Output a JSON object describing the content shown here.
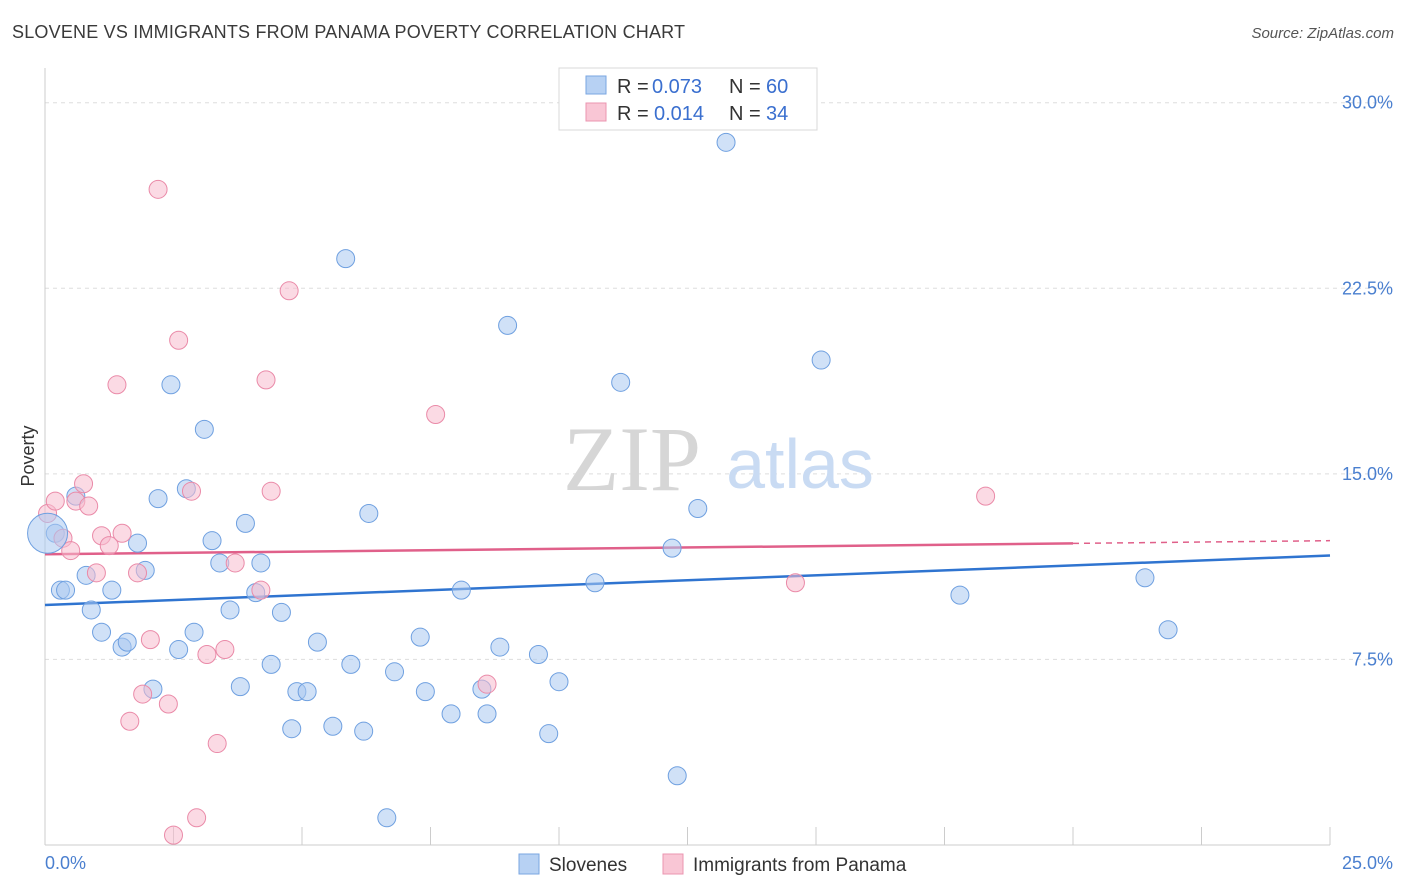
{
  "title": "SLOVENE VS IMMIGRANTS FROM PANAMA POVERTY CORRELATION CHART",
  "source": "Source: ZipAtlas.com",
  "watermark": {
    "zip": "ZIP",
    "atlas": "atlas"
  },
  "chart_data": {
    "type": "scatter",
    "ylabel": "Poverty",
    "xlim": [
      0,
      25
    ],
    "ylim": [
      0,
      31
    ],
    "x_tick_labels": [
      "0.0%",
      "25.0%"
    ],
    "y_ticks": [
      7.5,
      15.0,
      22.5,
      30.0
    ],
    "y_tick_labels": [
      "7.5%",
      "15.0%",
      "22.5%",
      "30.0%"
    ],
    "grid": true,
    "legend_position": "top-center",
    "legend": [
      {
        "r_label": "R =",
        "r_value": "0.073",
        "n_label": "N =",
        "n_value": "60"
      },
      {
        "r_label": "R =",
        "r_value": "0.014",
        "n_label": "N =",
        "n_value": "34"
      }
    ],
    "series": [
      {
        "name": "Slovenes",
        "color": "#a9c8f0",
        "stroke": "#6fa0e0",
        "line_color": "#2f74d0",
        "trend": {
          "x0": 0,
          "y0": 9.7,
          "x1": 25,
          "y1": 11.7,
          "dash_from": null
        },
        "points": [
          [
            0.2,
            12.6
          ],
          [
            0.3,
            10.3
          ],
          [
            0.4,
            10.3
          ],
          [
            0.6,
            14.1
          ],
          [
            0.8,
            10.9
          ],
          [
            0.9,
            9.5
          ],
          [
            1.1,
            8.6
          ],
          [
            1.3,
            10.3
          ],
          [
            1.5,
            8.0
          ],
          [
            1.6,
            8.2
          ],
          [
            1.8,
            12.2
          ],
          [
            1.95,
            11.1
          ],
          [
            2.1,
            6.3
          ],
          [
            2.2,
            14.0
          ],
          [
            2.45,
            18.6
          ],
          [
            2.6,
            7.9
          ],
          [
            2.75,
            14.4
          ],
          [
            2.9,
            8.6
          ],
          [
            3.1,
            16.8
          ],
          [
            3.25,
            12.3
          ],
          [
            3.4,
            11.4
          ],
          [
            3.6,
            9.5
          ],
          [
            3.8,
            6.4
          ],
          [
            3.9,
            13.0
          ],
          [
            4.1,
            10.2
          ],
          [
            4.2,
            11.4
          ],
          [
            4.4,
            7.3
          ],
          [
            4.6,
            9.4
          ],
          [
            4.8,
            4.7
          ],
          [
            4.9,
            6.2
          ],
          [
            5.1,
            6.2
          ],
          [
            5.3,
            8.2
          ],
          [
            5.6,
            4.8
          ],
          [
            5.85,
            23.7
          ],
          [
            5.95,
            7.3
          ],
          [
            6.2,
            4.6
          ],
          [
            6.3,
            13.4
          ],
          [
            6.65,
            1.1
          ],
          [
            6.8,
            7.0
          ],
          [
            7.3,
            8.4
          ],
          [
            7.4,
            6.2
          ],
          [
            7.9,
            5.3
          ],
          [
            8.1,
            10.3
          ],
          [
            8.5,
            6.3
          ],
          [
            8.6,
            5.3
          ],
          [
            8.85,
            8.0
          ],
          [
            9.0,
            21.0
          ],
          [
            9.6,
            7.7
          ],
          [
            9.8,
            4.5
          ],
          [
            10.0,
            6.6
          ],
          [
            10.7,
            10.6
          ],
          [
            11.2,
            18.7
          ],
          [
            12.2,
            12.0
          ],
          [
            12.3,
            2.8
          ],
          [
            12.7,
            13.6
          ],
          [
            13.25,
            28.4
          ],
          [
            15.1,
            19.6
          ],
          [
            17.8,
            10.1
          ],
          [
            21.4,
            10.8
          ],
          [
            21.85,
            8.7
          ]
        ]
      },
      {
        "name": "Immigrants from Panama",
        "color": "#f7bccd",
        "stroke": "#ea8aa8",
        "line_color": "#e0608a",
        "trend": {
          "x0": 0,
          "y0": 11.75,
          "x1": 25,
          "y1": 12.3,
          "dash_from": 20.0
        },
        "points": [
          [
            0.05,
            13.4
          ],
          [
            0.2,
            13.9
          ],
          [
            0.35,
            12.4
          ],
          [
            0.5,
            11.9
          ],
          [
            0.6,
            13.9
          ],
          [
            0.75,
            14.6
          ],
          [
            0.85,
            13.7
          ],
          [
            1.0,
            11.0
          ],
          [
            1.1,
            12.5
          ],
          [
            1.25,
            12.1
          ],
          [
            1.4,
            18.6
          ],
          [
            1.5,
            12.6
          ],
          [
            1.65,
            5.0
          ],
          [
            1.8,
            11.0
          ],
          [
            1.9,
            6.1
          ],
          [
            2.05,
            8.3
          ],
          [
            2.2,
            26.5
          ],
          [
            2.4,
            5.7
          ],
          [
            2.5,
            0.4
          ],
          [
            2.6,
            20.4
          ],
          [
            2.85,
            14.3
          ],
          [
            2.95,
            1.1
          ],
          [
            3.15,
            7.7
          ],
          [
            3.35,
            4.1
          ],
          [
            3.5,
            7.9
          ],
          [
            3.7,
            11.4
          ],
          [
            4.2,
            10.3
          ],
          [
            4.3,
            18.8
          ],
          [
            4.4,
            14.3
          ],
          [
            4.75,
            22.4
          ],
          [
            7.6,
            17.4
          ],
          [
            8.6,
            6.5
          ],
          [
            14.6,
            10.6
          ],
          [
            18.3,
            14.1
          ]
        ]
      }
    ]
  }
}
